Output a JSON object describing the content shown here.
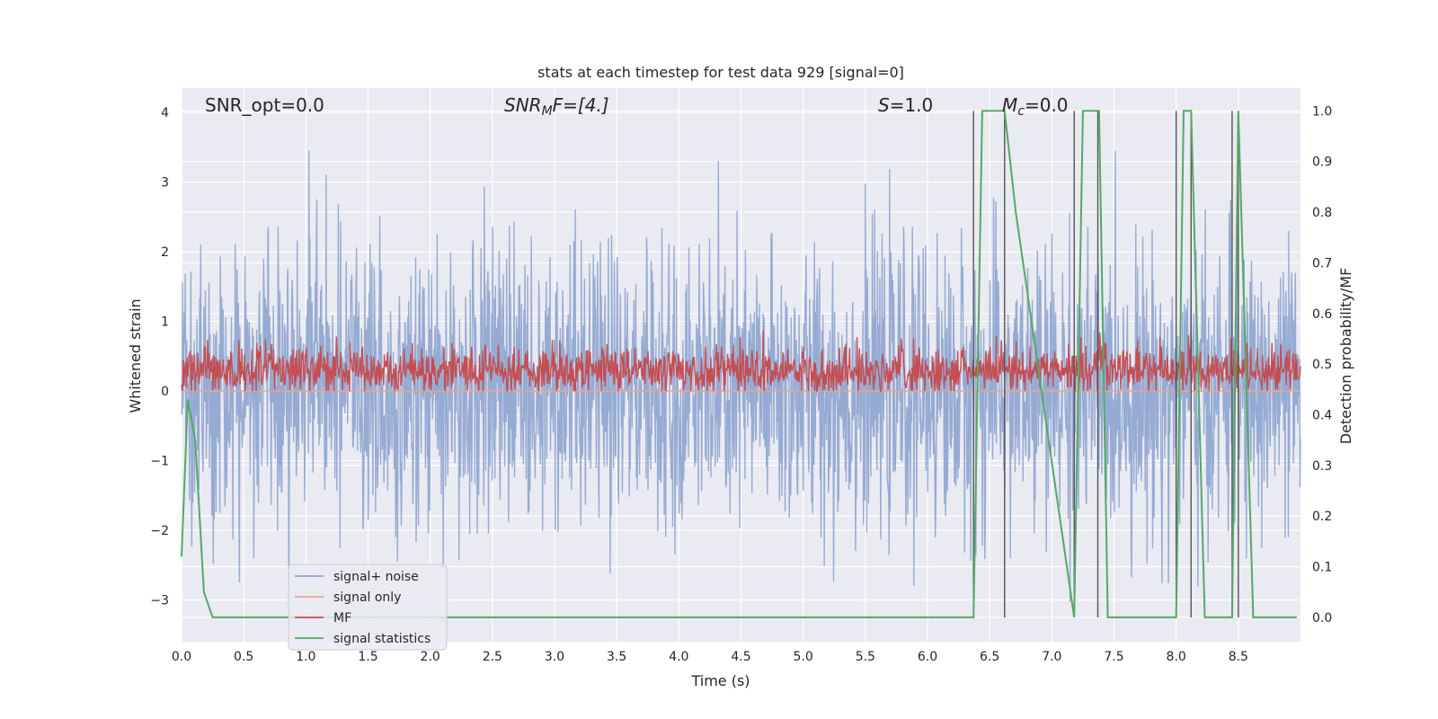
{
  "chart_data": {
    "type": "line",
    "title": "stats at each timestep for test data 929 [signal=0]",
    "xlabel": "Time (s)",
    "ylabel": "Whitened strain",
    "ylabel_right": "Detection probability/MF",
    "xlim": [
      0.0,
      9.0
    ],
    "ylim": [
      -3.6,
      4.35
    ],
    "ylim_right": [
      -0.048,
      1.045
    ],
    "x_ticks": [
      "0.0",
      "0.5",
      "1.0",
      "1.5",
      "2.0",
      "2.5",
      "3.0",
      "3.5",
      "4.0",
      "4.5",
      "5.0",
      "5.5",
      "6.0",
      "6.5",
      "7.0",
      "7.5",
      "8.0",
      "8.5"
    ],
    "y_ticks": [
      "4",
      "3",
      "2",
      "1",
      "0",
      "−1",
      "−2",
      "−3"
    ],
    "y_ticks_right": [
      "1.0",
      "0.9",
      "0.8",
      "0.7",
      "0.6",
      "0.5",
      "0.4",
      "0.3",
      "0.2",
      "0.1",
      "0.0"
    ],
    "grid": true,
    "legend_position": "lower-left",
    "annotations": {
      "snr_opt": "SNR_opt=0.0",
      "snr_mf_main": "SNR",
      "snr_mf_sub": "M",
      "snr_mf_rest": "F=[4.]",
      "s_main": "S",
      "s_rest": "=1.0",
      "mc_main": "M",
      "mc_sub": "c",
      "mc_rest": "=0.0"
    },
    "series": [
      {
        "name": "signal+ noise",
        "color": "#8da4cf",
        "description": "noisy whitened strain, roughly ±2 with peaks to ±3.4",
        "amplitude_typical": 1.0,
        "peak_max": 3.45,
        "peak_min": -3.35
      },
      {
        "name": "signal only",
        "color": "#e8a58e",
        "y_constant": 0.0
      },
      {
        "name": "MF",
        "color": "#c44e52",
        "description": "matched filter output between 0 and ~1",
        "baseline": 0.3
      },
      {
        "name": "signal statistics",
        "color": "#55a868",
        "axis": "right",
        "x": [
          0.0,
          0.05,
          0.11,
          0.18,
          0.25,
          6.37,
          6.44,
          6.62,
          6.71,
          7.18,
          7.25,
          7.38,
          7.45,
          8.0,
          8.06,
          8.12,
          8.23,
          8.45,
          8.5,
          8.62,
          8.97
        ],
        "y": [
          0.12,
          0.43,
          0.35,
          0.05,
          0.0,
          0.0,
          1.0,
          1.0,
          0.8,
          0.0,
          1.0,
          1.0,
          0.0,
          0.0,
          1.0,
          1.0,
          0.0,
          0.0,
          1.0,
          0.0,
          0.0
        ]
      }
    ],
    "vertical_lines": [
      6.37,
      6.62,
      7.18,
      7.37,
      8.0,
      8.12,
      8.45,
      8.5
    ]
  }
}
